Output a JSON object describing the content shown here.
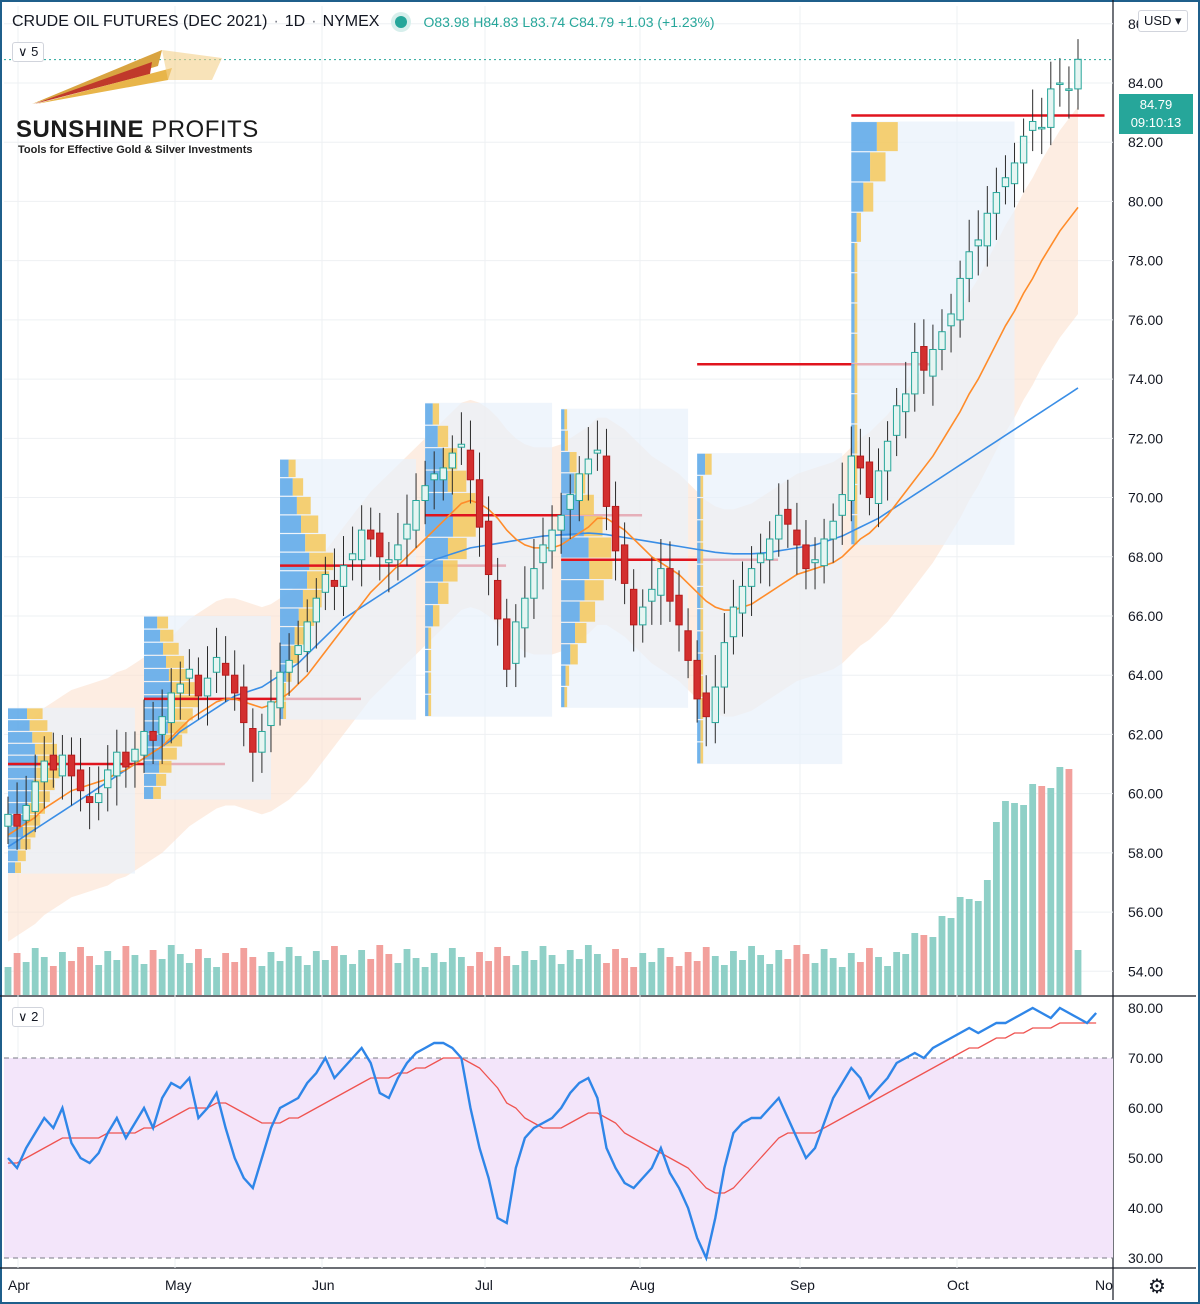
{
  "header": {
    "symbol": "CRUDE OIL FUTURES (DEC 2021)",
    "interval": "1D",
    "exchange": "NYMEX",
    "ohlc": "O83.98  H84.83  L83.74  C84.79  +1.03  (+1.23%)"
  },
  "pane_badges": {
    "main": "∨ 5",
    "rsi": "∨ 2"
  },
  "currency": "USD ▾",
  "last_price": {
    "value": "84.79",
    "countdown": "09:10:13"
  },
  "logo": {
    "name_bold": "SUNSHINE",
    "name_light": "PROFITS",
    "tagline": "Tools for Effective Gold & Silver Investments"
  },
  "colors": {
    "up": "#26a69a",
    "down": "#ef5350",
    "ema_fast": "#ff8c2a",
    "sma_slow": "#3a8ee6",
    "rsi": "#2f86e8",
    "rsi_signal": "#ef5350",
    "rsi_zone": "#f3e5fa",
    "band": "#fbe1cf",
    "poc": "#e0141e"
  },
  "icons": {
    "settings": "gear-icon"
  },
  "chart_data": [
    {
      "type": "candlestick",
      "title": "CRUDE OIL FUTURES (DEC 2021)",
      "x_ticks": [
        "Apr",
        "May",
        "Jun",
        "Jul",
        "Aug",
        "Sep",
        "Oct",
        "No"
      ],
      "y_ticks": [
        54,
        56,
        58,
        60,
        62,
        64,
        66,
        68,
        70,
        72,
        74,
        76,
        78,
        80,
        82,
        84,
        86
      ],
      "y_tick_labels": [
        "54.00",
        "56.00",
        "58.00",
        "60.00",
        "62.00",
        "64.00",
        "66.00",
        "68.00",
        "70.00",
        "72.00",
        "74.00",
        "76.00",
        "78.00",
        "80.00",
        "82.00",
        "84.00",
        "86.00"
      ],
      "ylim": [
        53.2,
        86.6
      ],
      "close": [
        59.3,
        58.9,
        59.6,
        60.4,
        61.1,
        60.8,
        61.3,
        60.6,
        60.1,
        59.7,
        60.0,
        60.8,
        61.4,
        60.9,
        61.5,
        62.1,
        61.8,
        62.6,
        63.4,
        63.7,
        64.2,
        63.3,
        63.9,
        64.6,
        64.0,
        63.4,
        62.4,
        61.4,
        62.1,
        63.1,
        64.1,
        64.5,
        65.0,
        65.8,
        66.6,
        67.4,
        67.0,
        67.7,
        68.1,
        68.9,
        68.6,
        68.0,
        67.9,
        68.4,
        69.1,
        69.9,
        70.4,
        70.8,
        71.0,
        71.5,
        71.8,
        70.6,
        69.0,
        67.4,
        65.9,
        64.2,
        65.8,
        66.6,
        67.6,
        68.4,
        68.9,
        69.4,
        70.1,
        70.8,
        71.3,
        71.6,
        69.7,
        68.2,
        67.1,
        65.7,
        66.3,
        66.9,
        67.6,
        66.5,
        65.7,
        64.5,
        63.2,
        62.6,
        63.6,
        65.1,
        66.3,
        67.0,
        67.6,
        68.1,
        68.6,
        69.4,
        69.1,
        68.4,
        67.6,
        67.9,
        68.6,
        69.2,
        70.1,
        71.4,
        71.0,
        70.0,
        70.9,
        71.9,
        73.1,
        73.5,
        74.9,
        74.3,
        75.0,
        75.6,
        76.2,
        77.4,
        78.3,
        78.7,
        79.6,
        80.3,
        80.8,
        81.3,
        82.2,
        82.7,
        82.5,
        83.8,
        84.0,
        83.8,
        84.8
      ],
      "sma50": [
        58.2,
        58.4,
        58.6,
        58.8,
        59.0,
        59.2,
        59.4,
        59.6,
        59.8,
        60.0,
        60.2,
        60.4,
        60.6,
        60.8,
        61.0,
        61.2,
        61.4,
        61.6,
        61.8,
        62.1,
        62.3,
        62.5,
        62.7,
        62.9,
        63.1,
        63.3,
        63.4,
        63.5,
        63.6,
        63.8,
        64.0,
        64.2,
        64.4,
        64.7,
        65.0,
        65.3,
        65.6,
        65.9,
        66.1,
        66.3,
        66.5,
        66.7,
        66.9,
        67.1,
        67.3,
        67.5,
        67.7,
        67.9,
        68.0,
        68.1,
        68.2,
        68.3,
        68.35,
        68.4,
        68.45,
        68.5,
        68.55,
        68.6,
        68.65,
        68.7,
        68.72,
        68.74,
        68.76,
        68.78,
        68.8,
        68.78,
        68.75,
        68.7,
        68.65,
        68.6,
        68.55,
        68.5,
        68.45,
        68.4,
        68.35,
        68.3,
        68.25,
        68.2,
        68.15,
        68.12,
        68.1,
        68.1,
        68.1,
        68.12,
        68.15,
        68.2,
        68.25,
        68.3,
        68.35,
        68.4,
        68.5,
        68.6,
        68.7,
        68.85,
        69.0,
        69.15,
        69.3,
        69.5,
        69.7,
        69.9,
        70.1,
        70.3,
        70.5,
        70.7,
        70.9,
        71.1,
        71.3,
        71.5,
        71.7,
        71.9,
        72.1,
        72.3,
        72.5,
        72.7,
        72.9,
        73.1,
        73.3,
        73.5,
        73.7
      ],
      "ema20": [
        58.6,
        58.8,
        59.0,
        59.2,
        59.5,
        59.7,
        59.9,
        60.1,
        60.2,
        60.3,
        60.4,
        60.5,
        60.7,
        60.8,
        61.0,
        61.2,
        61.4,
        61.6,
        61.9,
        62.2,
        62.5,
        62.7,
        62.9,
        63.1,
        63.2,
        63.2,
        63.1,
        63.0,
        62.9,
        63.0,
        63.2,
        63.4,
        63.7,
        64.0,
        64.4,
        64.8,
        65.2,
        65.6,
        66.0,
        66.4,
        66.8,
        67.1,
        67.4,
        67.7,
        68.0,
        68.3,
        68.6,
        68.9,
        69.2,
        69.5,
        69.8,
        69.9,
        69.8,
        69.6,
        69.3,
        68.9,
        68.6,
        68.4,
        68.3,
        68.3,
        68.3,
        68.4,
        68.6,
        68.8,
        69.0,
        69.3,
        69.3,
        69.1,
        68.9,
        68.6,
        68.3,
        68.0,
        67.8,
        67.6,
        67.4,
        67.1,
        66.8,
        66.5,
        66.3,
        66.2,
        66.2,
        66.3,
        66.4,
        66.6,
        66.8,
        67.0,
        67.2,
        67.4,
        67.5,
        67.6,
        67.7,
        67.8,
        68.0,
        68.3,
        68.6,
        68.8,
        69.1,
        69.4,
        69.8,
        70.2,
        70.6,
        71.0,
        71.4,
        71.9,
        72.4,
        72.9,
        73.5,
        74.0,
        74.6,
        75.2,
        75.8,
        76.3,
        76.9,
        77.4,
        78.0,
        78.5,
        79.0,
        79.4,
        79.8
      ],
      "rsi14": [
        50,
        48,
        52,
        55,
        58,
        56,
        60,
        53,
        50,
        49,
        51,
        55,
        58,
        54,
        57,
        60,
        56,
        62,
        65,
        64,
        66,
        58,
        60,
        63,
        56,
        50,
        46,
        44,
        50,
        56,
        60,
        61,
        62,
        65,
        67,
        70,
        66,
        68,
        70,
        72,
        69,
        63,
        62,
        66,
        69,
        71,
        72,
        73,
        73,
        72,
        70,
        60,
        52,
        46,
        38,
        37,
        48,
        54,
        56,
        57,
        58,
        60,
        63,
        65,
        66,
        62,
        52,
        48,
        45,
        44,
        46,
        48,
        52,
        47,
        44,
        40,
        34,
        30,
        38,
        48,
        55,
        57,
        58,
        58,
        60,
        62,
        58,
        54,
        50,
        52,
        57,
        62,
        65,
        68,
        66,
        62,
        64,
        66,
        69,
        70,
        71,
        70,
        72,
        73,
        74,
        75,
        76,
        75,
        76,
        77,
        77,
        78,
        79,
        80,
        79,
        78,
        80,
        79,
        78,
        77,
        79
      ],
      "rsi_ma": [
        49,
        49,
        50,
        51,
        52,
        53,
        54,
        54,
        54,
        54,
        54,
        55,
        55,
        55,
        55,
        56,
        56,
        57,
        58,
        59,
        60,
        60,
        60,
        61,
        61,
        60,
        59,
        58,
        57,
        57,
        57,
        58,
        58,
        59,
        60,
        61,
        62,
        63,
        64,
        65,
        66,
        66,
        66,
        67,
        67,
        68,
        68,
        69,
        70,
        70,
        70,
        69,
        68,
        66,
        64,
        61,
        60,
        58,
        57,
        56,
        56,
        56,
        57,
        58,
        59,
        59,
        58,
        57,
        55,
        54,
        53,
        52,
        51,
        50,
        49,
        48,
        46,
        44,
        43,
        43,
        44,
        46,
        48,
        50,
        52,
        54,
        55,
        55,
        55,
        55,
        56,
        57,
        58,
        59,
        60,
        61,
        62,
        63,
        64,
        65,
        66,
        67,
        68,
        69,
        70,
        71,
        72,
        72,
        73,
        74,
        74,
        75,
        75,
        76,
        76,
        76,
        77,
        77,
        77,
        77,
        77
      ],
      "rsi_ylim": [
        28,
        82
      ],
      "rsi_ticks": [
        "30.00",
        "40.00",
        "50.00",
        "60.00",
        "70.00",
        "80.00"
      ],
      "rsi_levels": [
        30,
        70
      ],
      "volume_profile_poc": [
        61.0,
        63.2,
        67.7,
        69.4,
        67.9,
        74.5,
        82.9
      ]
    }
  ]
}
